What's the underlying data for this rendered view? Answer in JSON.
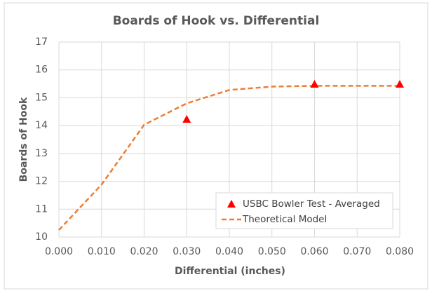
{
  "chart_data": {
    "type": "scatter",
    "title": "Boards of Hook vs. Differential",
    "x_label": "Differential (inches)",
    "y_label": "Boards of Hook",
    "xlim": [
      0,
      0.08
    ],
    "ylim": [
      10,
      17
    ],
    "xticks": [
      {
        "value": 0,
        "label": "0.000"
      },
      {
        "value": 0.01,
        "label": "0.010"
      },
      {
        "value": 0.02,
        "label": "0.020"
      },
      {
        "value": 0.03,
        "label": "0.030"
      },
      {
        "value": 0.04,
        "label": "0.040"
      },
      {
        "value": 0.05,
        "label": "0.050"
      },
      {
        "value": 0.06,
        "label": "0.060"
      },
      {
        "value": 0.07,
        "label": "0.070"
      },
      {
        "value": 0.08,
        "label": "0.080"
      }
    ],
    "yticks": [
      10,
      11,
      12,
      13,
      14,
      15,
      16,
      17
    ],
    "grid": true,
    "legend": "bottom-right",
    "series": [
      {
        "name": "USBC Bowler Test - Averaged",
        "type": "scatter",
        "color": "#ff0000",
        "x": [
          0.03,
          0.06,
          0.08
        ],
        "values": [
          14.23,
          15.49,
          15.49
        ]
      },
      {
        "name": "Theoretical Model",
        "type": "line",
        "color": "#ed7d31",
        "x": [
          0,
          0.01,
          0.02,
          0.03,
          0.04,
          0.05,
          0.06,
          0.07,
          0.08
        ],
        "values": [
          10.25,
          11.88,
          14.03,
          14.8,
          15.28,
          15.4,
          15.43,
          15.43,
          15.43
        ]
      }
    ]
  }
}
